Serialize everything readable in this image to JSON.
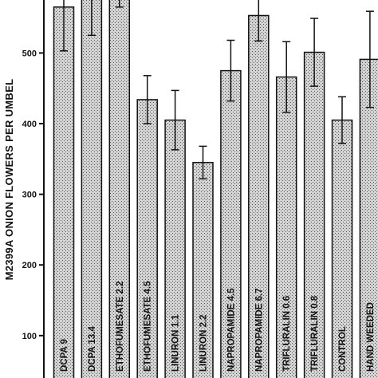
{
  "chart_data": {
    "type": "bar",
    "ylabel": "M2399A ONION FLOWERS PER UMBEL",
    "ylim": [
      40,
      575
    ],
    "yticks": [
      100,
      200,
      300,
      400,
      500
    ],
    "grid": false,
    "bar_pattern": "stippled-gray",
    "categories": [
      "DCPA  9",
      "DCPA  13.4",
      "ETHOFUMESATE  2.2",
      "ETHOFUMESATE  4.5",
      "LINURON  1.1",
      "LINURON  2.2",
      "NAPROPAMIDE  4.5",
      "NAPROPAMIDE  6.7",
      "TRIFLURALIN  0.6",
      "TRIFLURALIN  0.8",
      "CONTROL",
      "HAND WEEDED"
    ],
    "values": [
      565,
      585,
      620,
      434,
      405,
      345,
      475,
      553,
      466,
      501,
      405,
      491
    ],
    "error": [
      62,
      60,
      55,
      34,
      42,
      23,
      43,
      36,
      50,
      48,
      33,
      68
    ]
  }
}
